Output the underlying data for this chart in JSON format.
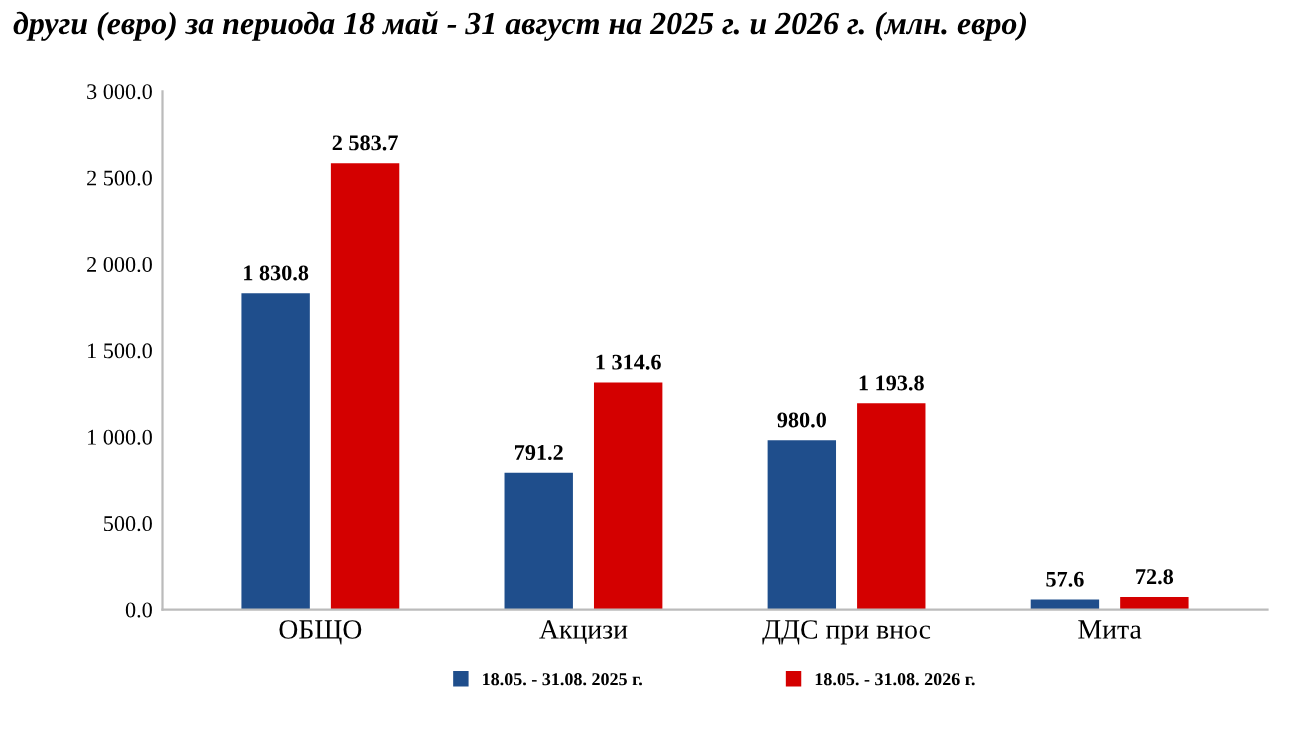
{
  "chart_data": {
    "type": "bar",
    "title": "други (евро) за периода 18 май - 31 август на 2025 г. и 2026 г. (млн. евро)",
    "categories": [
      "ОБЩО",
      "Акцизи",
      "ДДС при внос",
      "Мита"
    ],
    "series": [
      {
        "name": "18.05. - 31.08. 2025 г.",
        "color": "#1f4e8c",
        "values": [
          1830.8,
          791.2,
          980.0,
          57.6
        ],
        "value_labels": [
          "1 830.8",
          "791.2",
          "980.0",
          "57.6"
        ]
      },
      {
        "name": "18.05. - 31.08. 2026 г.",
        "color": "#d40000",
        "values": [
          2583.7,
          1314.6,
          1193.8,
          72.8
        ],
        "value_labels": [
          "2 583.7",
          "1 314.6",
          "1 193.8",
          "72.8"
        ]
      }
    ],
    "ylim": [
      0,
      3000
    ],
    "yticks": [
      {
        "value": 0,
        "label": "0.0"
      },
      {
        "value": 500,
        "label": "500.0"
      },
      {
        "value": 1000,
        "label": "1 000.0"
      },
      {
        "value": 1500,
        "label": "1 500.0"
      },
      {
        "value": 2000,
        "label": "2 000.0"
      },
      {
        "value": 2500,
        "label": "2 500.0"
      },
      {
        "value": 3000,
        "label": "3 000.0"
      }
    ],
    "grid": false,
    "legend": "bottom"
  }
}
